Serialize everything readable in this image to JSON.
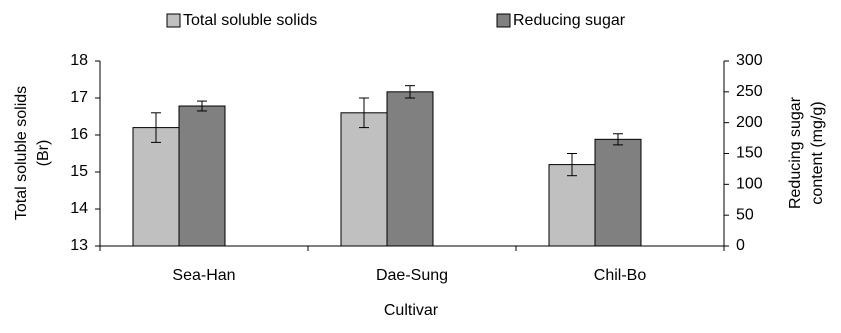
{
  "chart_data": {
    "type": "bar",
    "categories": [
      "Sea-Han",
      "Dae-Sung",
      "Chil-Bo"
    ],
    "xlabel": "Cultivar",
    "ylabel": [
      "Total soluble solids",
      "(Br)"
    ],
    "y2label": [
      "Reducing sugar",
      "content (mg/g)"
    ],
    "ylim": [
      13,
      18
    ],
    "yticks": [
      13,
      14,
      15,
      16,
      17,
      18
    ],
    "y2lim": [
      0,
      300
    ],
    "y2ticks": [
      0,
      50,
      100,
      150,
      200,
      250,
      300
    ],
    "legend": "top",
    "series": [
      {
        "name": "Total soluble solids",
        "color": "#c0c0c0",
        "values": [
          16.2,
          16.6,
          15.2
        ],
        "errors": [
          0.4,
          0.4,
          0.3
        ]
      },
      {
        "name": "Reducing sugar",
        "color": "#808080",
        "axis": "y2",
        "values": [
          227,
          250,
          173
        ],
        "errors": [
          8,
          10,
          9
        ]
      }
    ]
  }
}
